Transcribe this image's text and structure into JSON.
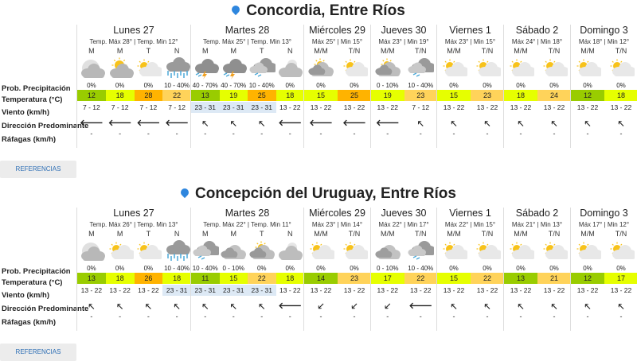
{
  "colors": {
    "cold": "#99cc00",
    "mild": "#e6ff00",
    "warm": "#ffd35a",
    "hot": "#ffb300",
    "wind_highlight": "#dde9f5",
    "pin": "#2e86de",
    "link": "#2e6fb5"
  },
  "row_labels": [
    "Prob. Precipitación",
    "Temperatura (°C)",
    "Viento (km/h)",
    "Dirección Predominante",
    "Ráfagas (km/h)"
  ],
  "references_label": "REFERENCIAS",
  "locations": [
    {
      "title": "Concordia, Entre Ríos",
      "days": [
        {
          "name": "Lunes 27",
          "summary": "Temp. Máx 28° | Temp. Min 12°",
          "slots": [
            {
              "label": "M",
              "icon": "moon-cloud",
              "prob": "0%",
              "temp": "12",
              "wind": "7 - 12",
              "dir": "west",
              "gust": "-"
            },
            {
              "label": "M",
              "icon": "sun-cloud-gray",
              "prob": "0%",
              "temp": "18",
              "wind": "7 - 12",
              "dir": "west",
              "gust": "-"
            },
            {
              "label": "T",
              "icon": "sun-cloud",
              "prob": "0%",
              "temp": "28",
              "wind": "7 - 12",
              "dir": "west",
              "gust": "-"
            },
            {
              "label": "N",
              "icon": "rain",
              "prob": "10 - 40%",
              "temp": "22",
              "wind": "7 - 12",
              "dir": "west",
              "gust": "-"
            }
          ]
        },
        {
          "name": "Martes 28",
          "summary": "Temp. Máx 25° | Temp. Min 13°",
          "slots": [
            {
              "label": "M",
              "icon": "storm",
              "prob": "40 - 70%",
              "temp": "13",
              "wind": "23 - 31",
              "dir": "northwest",
              "gust": "-"
            },
            {
              "label": "M",
              "icon": "storm",
              "prob": "40 - 70%",
              "temp": "19",
              "wind": "23 - 31",
              "dir": "northwest",
              "gust": "-"
            },
            {
              "label": "T",
              "icon": "storm-light",
              "prob": "10 - 40%",
              "temp": "25",
              "wind": "23 - 31",
              "dir": "northwest",
              "gust": "-"
            },
            {
              "label": "N",
              "icon": "night-cloud",
              "prob": "0%",
              "temp": "18",
              "wind": "13 - 22",
              "dir": "west",
              "gust": "-"
            }
          ]
        },
        {
          "name": "Miércoles 29",
          "summary": "Máx 25° | Min 15°",
          "slots": [
            {
              "label": "M/M",
              "icon": "cloud-sun-gray",
              "prob": "0%",
              "temp": "15",
              "wind": "13 - 22",
              "dir": "west",
              "gust": "-"
            },
            {
              "label": "T/N",
              "icon": "sun-cloud",
              "prob": "0%",
              "temp": "25",
              "wind": "13 - 22",
              "dir": "west",
              "gust": "-"
            }
          ]
        },
        {
          "name": "Jueves 30",
          "summary": "Máx 23° | Min 19°",
          "slots": [
            {
              "label": "M/M",
              "icon": "cloud-sun-gray",
              "prob": "0 - 10%",
              "temp": "19",
              "wind": "13 - 22",
              "dir": "west",
              "gust": "-"
            },
            {
              "label": "T/N",
              "icon": "storm-light",
              "prob": "10 - 40%",
              "temp": "23",
              "wind": "7 - 12",
              "dir": "northwest",
              "gust": "-"
            }
          ]
        },
        {
          "name": "Viernes 1",
          "summary": "Máx 23° | Min 15°",
          "slots": [
            {
              "label": "M/M",
              "icon": "sun-cloud",
              "prob": "0%",
              "temp": "15",
              "wind": "13 - 22",
              "dir": "northwest",
              "gust": "-"
            },
            {
              "label": "T/N",
              "icon": "sun-cloud",
              "prob": "0%",
              "temp": "23",
              "wind": "13 - 22",
              "dir": "northwest",
              "gust": "-"
            }
          ]
        },
        {
          "name": "Sábado 2",
          "summary": "Máx 24° | Min 18°",
          "slots": [
            {
              "label": "M/M",
              "icon": "sun-cloud",
              "prob": "0%",
              "temp": "18",
              "wind": "13 - 22",
              "dir": "northwest",
              "gust": "-"
            },
            {
              "label": "T/N",
              "icon": "sun-cloud",
              "prob": "0%",
              "temp": "24",
              "wind": "13 - 22",
              "dir": "northwest",
              "gust": "-"
            }
          ]
        },
        {
          "name": "Domingo 3",
          "summary": "Máx 18° | Min 12°",
          "slots": [
            {
              "label": "M/M",
              "icon": "sun-cloud",
              "prob": "0%",
              "temp": "12",
              "wind": "13 - 22",
              "dir": "northwest",
              "gust": "-"
            },
            {
              "label": "T/N",
              "icon": "sun-cloud",
              "prob": "0%",
              "temp": "18",
              "wind": "13 - 22",
              "dir": "northwest",
              "gust": "-"
            }
          ]
        }
      ]
    },
    {
      "title": "Concepción del Uruguay, Entre Ríos",
      "days": [
        {
          "name": "Lunes 27",
          "summary": "Temp. Máx 26° | Temp. Min 13°",
          "slots": [
            {
              "label": "M",
              "icon": "moon-cloud",
              "prob": "0%",
              "temp": "13",
              "wind": "13 - 22",
              "dir": "northwest",
              "gust": "-"
            },
            {
              "label": "M",
              "icon": "sun-cloud",
              "prob": "0%",
              "temp": "18",
              "wind": "13 - 22",
              "dir": "northwest",
              "gust": "-"
            },
            {
              "label": "T",
              "icon": "sun-cloud",
              "prob": "0%",
              "temp": "26",
              "wind": "13 - 22",
              "dir": "northwest",
              "gust": "-"
            },
            {
              "label": "N",
              "icon": "rain",
              "prob": "10 - 40%",
              "temp": "18",
              "wind": "23 - 31",
              "dir": "northwest",
              "gust": "-"
            }
          ]
        },
        {
          "name": "Martes 28",
          "summary": "Temp. Máx 22° | Temp. Min 11°",
          "slots": [
            {
              "label": "M",
              "icon": "storm-light",
              "prob": "10 - 40%",
              "temp": "11",
              "wind": "23 - 31",
              "dir": "northwest",
              "gust": "-"
            },
            {
              "label": "M",
              "icon": "cloud",
              "prob": "0 - 10%",
              "temp": "15",
              "wind": "23 - 31",
              "dir": "northwest",
              "gust": "-"
            },
            {
              "label": "T",
              "icon": "cloud-sun-gray",
              "prob": "0%",
              "temp": "22",
              "wind": "23 - 31",
              "dir": "northwest",
              "gust": "-"
            },
            {
              "label": "N",
              "icon": "night-cloud",
              "prob": "0%",
              "temp": "18",
              "wind": "13 - 22",
              "dir": "west",
              "gust": "-"
            }
          ]
        },
        {
          "name": "Miércoles 29",
          "summary": "Máx 23° | Min 14°",
          "slots": [
            {
              "label": "M/M",
              "icon": "sun-cloud",
              "prob": "0%",
              "temp": "14",
              "wind": "13 - 22",
              "dir": "southwest",
              "gust": "-"
            },
            {
              "label": "T/N",
              "icon": "sun-cloud",
              "prob": "0%",
              "temp": "23",
              "wind": "13 - 22",
              "dir": "southwest",
              "gust": "-"
            }
          ]
        },
        {
          "name": "Jueves 30",
          "summary": "Máx 22° | Min 17°",
          "slots": [
            {
              "label": "M/M",
              "icon": "cloud",
              "prob": "0 - 10%",
              "temp": "17",
              "wind": "13 - 22",
              "dir": "southwest",
              "gust": "-"
            },
            {
              "label": "T/N",
              "icon": "storm-light",
              "prob": "10 - 40%",
              "temp": "22",
              "wind": "13 - 22",
              "dir": "west",
              "gust": "-"
            }
          ]
        },
        {
          "name": "Viernes 1",
          "summary": "Máx 22° | Min 15°",
          "slots": [
            {
              "label": "M/M",
              "icon": "sun-cloud",
              "prob": "0%",
              "temp": "15",
              "wind": "13 - 22",
              "dir": "northwest",
              "gust": "-"
            },
            {
              "label": "T/N",
              "icon": "sun-cloud",
              "prob": "0%",
              "temp": "22",
              "wind": "13 - 22",
              "dir": "northwest",
              "gust": "-"
            }
          ]
        },
        {
          "name": "Sábado 2",
          "summary": "Máx 21° | Min 13°",
          "slots": [
            {
              "label": "M/M",
              "icon": "sun-cloud",
              "prob": "0%",
              "temp": "13",
              "wind": "13 - 22",
              "dir": "northwest",
              "gust": "-"
            },
            {
              "label": "T/N",
              "icon": "sun-cloud",
              "prob": "0%",
              "temp": "21",
              "wind": "13 - 22",
              "dir": "northwest",
              "gust": "-"
            }
          ]
        },
        {
          "name": "Domingo 3",
          "summary": "Máx 17° | Min 12°",
          "slots": [
            {
              "label": "M/M",
              "icon": "sun-cloud",
              "prob": "0%",
              "temp": "12",
              "wind": "13 - 22",
              "dir": "northwest",
              "gust": "-"
            },
            {
              "label": "T/N",
              "icon": "sun-cloud",
              "prob": "0%",
              "temp": "17",
              "wind": "13 - 22",
              "dir": "northwest",
              "gust": "-"
            }
          ]
        }
      ]
    }
  ]
}
